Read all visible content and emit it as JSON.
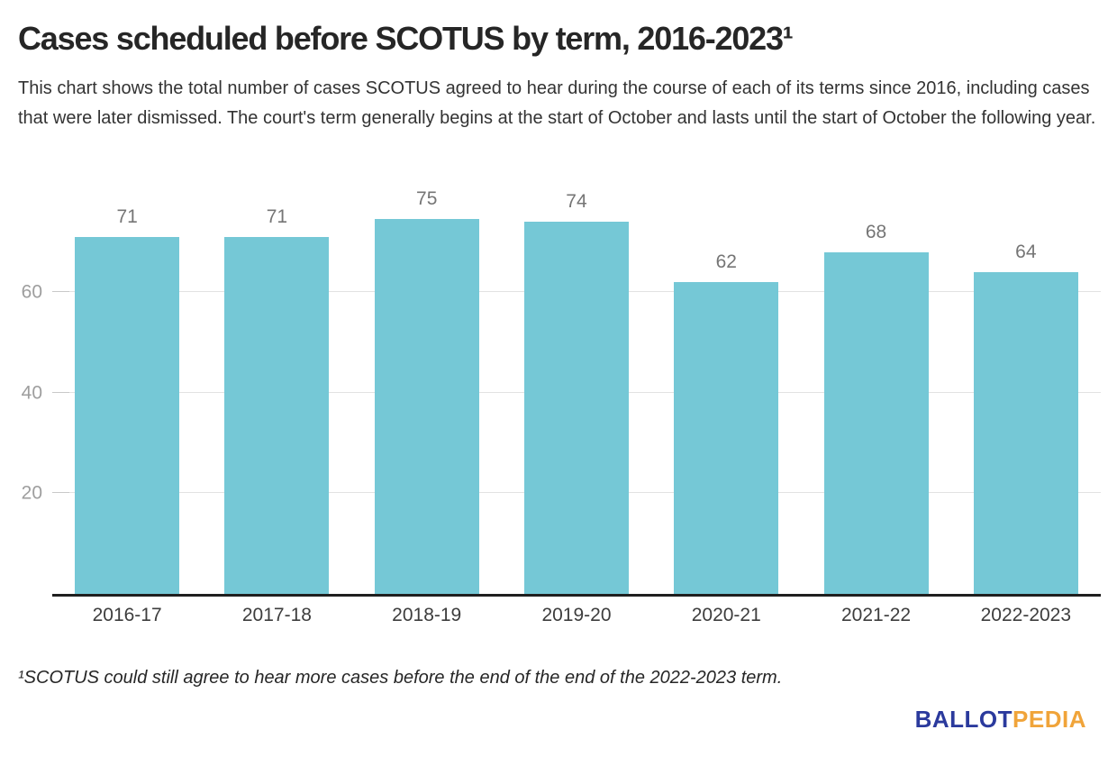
{
  "header": {
    "title": "Cases scheduled before SCOTUS by term, 2016-2023¹",
    "subtitle": "This chart shows the total number of cases SCOTUS agreed to hear during the course of each of its terms since 2016, including cases that were later dismissed. The court's term generally begins at the start of October and lasts until the start of October the following year."
  },
  "chart_data": {
    "type": "bar",
    "title": "Cases scheduled before SCOTUS by term, 2016-2023¹",
    "categories": [
      "2016-17",
      "2017-18",
      "2018-19",
      "2019-20",
      "2020-21",
      "2021-22",
      "2022-2023"
    ],
    "values": [
      71,
      71,
      75,
      74,
      62,
      68,
      64
    ],
    "yticks": [
      20,
      40,
      60
    ],
    "ylim": [
      0,
      81
    ],
    "xlabel": "",
    "ylabel": "",
    "grid": true,
    "legend": "none",
    "bar_color": "#75c8d6",
    "value_label_color": "#757575",
    "axis_label_color": "#3d3d3d",
    "ytick_color": "#9e9e9e",
    "gridline_color": "#e2e2e2",
    "baseline_color": "#1f1f1f"
  },
  "footnote": "¹SCOTUS could still agree to hear more cases before the end of the end of the 2022-2023 term.",
  "logo": {
    "part1": "BALLOT",
    "part2": "PEDIA",
    "part1_color": "#2b3a9d",
    "part2_color": "#f0a43a"
  }
}
